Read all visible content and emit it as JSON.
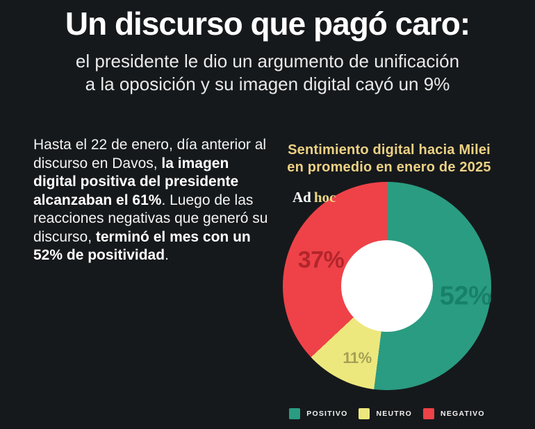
{
  "header": {
    "title": "Un discurso que pagó caro:",
    "subtitle_line1": "el presidente le dio un argumento de unificación",
    "subtitle_line2": "a la oposición y su imagen digital cayó un 9%"
  },
  "body": {
    "segments": [
      {
        "text": "Hasta el 22 de enero, día anterior al discurso en Davos, ",
        "bold": false
      },
      {
        "text": "la imagen digital positiva del presidente alcanzaban el 61%",
        "bold": true
      },
      {
        "text": ". Luego de las reacciones negativas que generó su discurso, ",
        "bold": false
      },
      {
        "text": "terminó el mes con un 52% de positividad",
        "bold": true
      },
      {
        "text": ".",
        "bold": false
      }
    ]
  },
  "chart": {
    "title_line1": "Sentimiento digital hacia Milei",
    "title_line2": "en promedio en enero de 2025",
    "brand_part1": "Ad",
    "brand_part2": "hoc"
  },
  "chart_data": {
    "type": "pie",
    "donut": true,
    "title": "Sentimiento digital hacia Milei en promedio en enero de 2025",
    "categories": [
      "POSITIVO",
      "NEUTRO",
      "NEGATIVO"
    ],
    "values": [
      52,
      11,
      37
    ],
    "labels": [
      "52%",
      "11%",
      "37%"
    ],
    "slice_colors": [
      "#2a9c81",
      "#ede87d",
      "#ee4248"
    ],
    "label_colors": [
      "#17806a",
      "#a49f55",
      "#b2252c"
    ],
    "start_angle_deg": 0,
    "direction": "clockwise",
    "hole_color": "#ffffff",
    "legend_position": "bottom"
  },
  "legend": {
    "items": [
      {
        "label": "POSITIVO",
        "color": "#2a9c81"
      },
      {
        "label": "NEUTRO",
        "color": "#ede87d"
      },
      {
        "label": "NEGATIVO",
        "color": "#ee4248"
      }
    ]
  },
  "colors": {
    "background": "#16191c",
    "title_text": "#ffffff",
    "subtitle_text": "#e9e9e9",
    "chart_title": "#ecd184",
    "brand_hoc": "#e9d887"
  }
}
